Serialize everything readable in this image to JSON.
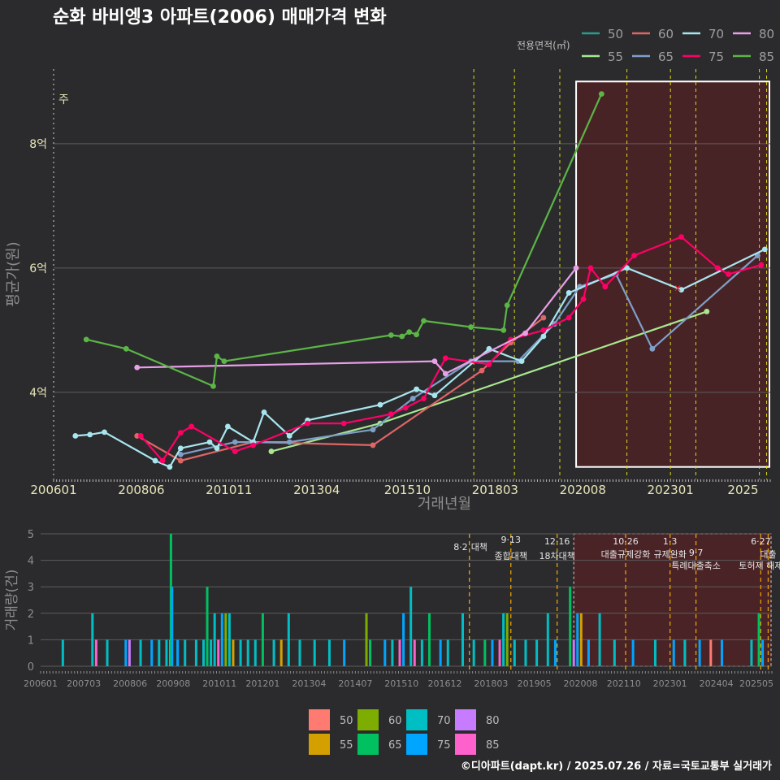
{
  "chart_data": [
    {
      "type": "line",
      "title": "순화 바비엥3 아파트(2006) 매매가격 변화",
      "xlabel": "거래년월",
      "ylabel": "평균가(원)",
      "x_ticks": [
        "200601",
        "200806",
        "201011",
        "201304",
        "201510",
        "201803",
        "202008",
        "202301",
        "2025"
      ],
      "y_ticks": [
        {
          "value": 4,
          "label": "4억"
        },
        {
          "value": 6,
          "label": "6억"
        },
        {
          "value": 8,
          "label": "8억"
        }
      ],
      "ylim": [
        2.6,
        9.2
      ],
      "xlim": [
        2006.0,
        2025.75
      ],
      "note_label": "주",
      "legend_title": "전용면적(㎡)",
      "series": [
        {
          "name": "50",
          "color": "#2a9d8f",
          "points": []
        },
        {
          "name": "55",
          "color": "#a8e890",
          "points": [
            [
              2012.0,
              3.05
            ],
            [
              2015.0,
              3.5
            ],
            [
              2024.0,
              5.3
            ]
          ]
        },
        {
          "name": "60",
          "color": "#e06666",
          "points": [
            [
              2008.3,
              3.3
            ],
            [
              2009.5,
              2.9
            ],
            [
              2011.5,
              3.2
            ],
            [
              2014.8,
              3.15
            ],
            [
              2017.8,
              4.35
            ],
            [
              2018.6,
              4.8
            ],
            [
              2019.5,
              5.2
            ]
          ]
        },
        {
          "name": "65",
          "color": "#7f9fc8",
          "points": [
            [
              2009.5,
              3.0
            ],
            [
              2011.0,
              3.2
            ],
            [
              2012.5,
              3.2
            ],
            [
              2014.8,
              3.4
            ],
            [
              2015.9,
              3.9
            ],
            [
              2017.5,
              4.5
            ],
            [
              2018.8,
              4.5
            ],
            [
              2019.8,
              5.1
            ],
            [
              2020.5,
              5.7
            ],
            [
              2021.5,
              5.9
            ],
            [
              2022.5,
              4.7
            ],
            [
              2025.4,
              6.2
            ]
          ]
        },
        {
          "name": "70",
          "color": "#a8e6ef",
          "points": [
            [
              2006.6,
              3.3
            ],
            [
              2007.0,
              3.32
            ],
            [
              2007.4,
              3.36
            ],
            [
              2008.8,
              2.9
            ],
            [
              2009.2,
              2.8
            ],
            [
              2009.5,
              3.1
            ],
            [
              2010.3,
              3.2
            ],
            [
              2010.5,
              3.1
            ],
            [
              2010.8,
              3.45
            ],
            [
              2011.5,
              3.2
            ],
            [
              2011.8,
              3.68
            ],
            [
              2012.5,
              3.3
            ],
            [
              2013.0,
              3.55
            ],
            [
              2015.0,
              3.8
            ],
            [
              2016.0,
              4.05
            ],
            [
              2016.5,
              3.95
            ],
            [
              2018.0,
              4.7
            ],
            [
              2018.9,
              4.5
            ],
            [
              2019.5,
              4.9
            ],
            [
              2020.2,
              5.6
            ],
            [
              2021.8,
              6.0
            ],
            [
              2023.3,
              5.65
            ],
            [
              2025.6,
              6.3
            ]
          ]
        },
        {
          "name": "75",
          "color": "#ff0066",
          "points": [
            [
              2008.4,
              3.3
            ],
            [
              2009.0,
              2.9
            ],
            [
              2009.5,
              3.35
            ],
            [
              2009.8,
              3.45
            ],
            [
              2011.0,
              3.05
            ],
            [
              2011.5,
              3.15
            ],
            [
              2013.0,
              3.5
            ],
            [
              2014.0,
              3.5
            ],
            [
              2015.3,
              3.65
            ],
            [
              2015.7,
              3.75
            ],
            [
              2016.2,
              3.9
            ],
            [
              2016.8,
              4.55
            ],
            [
              2018.0,
              4.45
            ],
            [
              2018.6,
              4.85
            ],
            [
              2019.5,
              5.0
            ],
            [
              2020.2,
              5.2
            ],
            [
              2020.6,
              5.5
            ],
            [
              2020.8,
              6.0
            ],
            [
              2021.2,
              5.7
            ],
            [
              2022.0,
              6.2
            ],
            [
              2023.3,
              6.5
            ],
            [
              2024.3,
              6.0
            ],
            [
              2024.6,
              5.9
            ],
            [
              2025.5,
              6.05
            ]
          ]
        },
        {
          "name": "80",
          "color": "#e8a0e8",
          "points": [
            [
              2008.3,
              4.4
            ],
            [
              2016.5,
              4.5
            ],
            [
              2016.8,
              4.3
            ],
            [
              2019.0,
              4.95
            ],
            [
              2020.4,
              6.0
            ]
          ]
        },
        {
          "name": "85",
          "color": "#5bb646",
          "points": [
            [
              2006.9,
              4.85
            ],
            [
              2008.0,
              4.7
            ],
            [
              2010.4,
              4.1
            ],
            [
              2010.5,
              4.58
            ],
            [
              2010.7,
              4.5
            ],
            [
              2015.3,
              4.92
            ],
            [
              2015.6,
              4.9
            ],
            [
              2015.8,
              4.97
            ],
            [
              2016.0,
              4.93
            ],
            [
              2016.2,
              5.15
            ],
            [
              2017.5,
              5.05
            ],
            [
              2018.4,
              5.0
            ],
            [
              2018.5,
              5.4
            ],
            [
              2021.1,
              8.8
            ]
          ]
        }
      ],
      "markers_x": [
        {
          "x": 2023.2,
          "y": 5.68,
          "color": "#ff2222"
        }
      ],
      "highlight_region": {
        "x_start": 2020.4,
        "x_end": 2025.75,
        "y_start": 2.8,
        "y_end": 9.0
      },
      "policy_lines": [
        2017.58,
        2018.7,
        2019.95,
        2021.8,
        2023.0,
        2023.7,
        2025.45,
        2025.65
      ]
    },
    {
      "type": "bar",
      "title": "",
      "xlabel": "",
      "ylabel": "거래량(건)",
      "x_ticks": [
        "200601",
        "200703",
        "200806",
        "200908",
        "201011",
        "201201",
        "201304",
        "201407",
        "201510",
        "201612",
        "201803",
        "201905",
        "202008",
        "202110",
        "202301",
        "202404",
        "202505"
      ],
      "y_ticks": [
        0,
        1,
        2,
        3,
        4,
        5
      ],
      "ylim": [
        0,
        5
      ],
      "legend": [
        {
          "name": "50",
          "color": "#ff7b72"
        },
        {
          "name": "55",
          "color": "#d4a000"
        },
        {
          "name": "60",
          "color": "#7cad00"
        },
        {
          "name": "65",
          "color": "#00c060"
        },
        {
          "name": "70",
          "color": "#00bfc4"
        },
        {
          "name": "75",
          "color": "#00a5ff"
        },
        {
          "name": "80",
          "color": "#c77cff"
        },
        {
          "name": "85",
          "color": "#ff61cc"
        }
      ],
      "bars": [
        {
          "x": 2006.6,
          "cat": "70",
          "v": 1
        },
        {
          "x": 2007.4,
          "cat": "70",
          "v": 2
        },
        {
          "x": 2007.5,
          "cat": "85",
          "v": 1
        },
        {
          "x": 2007.8,
          "cat": "70",
          "v": 1
        },
        {
          "x": 2008.3,
          "cat": "75",
          "v": 1
        },
        {
          "x": 2008.4,
          "cat": "80",
          "v": 1
        },
        {
          "x": 2008.7,
          "cat": "70",
          "v": 1
        },
        {
          "x": 2009.0,
          "cat": "75",
          "v": 1
        },
        {
          "x": 2009.2,
          "cat": "70",
          "v": 1
        },
        {
          "x": 2009.4,
          "cat": "70",
          "v": 1
        },
        {
          "x": 2009.5,
          "cat": "60",
          "v": 1
        },
        {
          "x": 2009.52,
          "cat": "65",
          "v": 5
        },
        {
          "x": 2009.55,
          "cat": "75",
          "v": 3
        },
        {
          "x": 2009.7,
          "cat": "75",
          "v": 1
        },
        {
          "x": 2009.9,
          "cat": "70",
          "v": 1
        },
        {
          "x": 2010.2,
          "cat": "70",
          "v": 1
        },
        {
          "x": 2010.4,
          "cat": "70",
          "v": 1
        },
        {
          "x": 2010.5,
          "cat": "65",
          "v": 3
        },
        {
          "x": 2010.6,
          "cat": "70",
          "v": 1
        },
        {
          "x": 2010.7,
          "cat": "70",
          "v": 2
        },
        {
          "x": 2010.8,
          "cat": "85",
          "v": 1
        },
        {
          "x": 2010.9,
          "cat": "75",
          "v": 2
        },
        {
          "x": 2011.0,
          "cat": "60",
          "v": 2
        },
        {
          "x": 2011.1,
          "cat": "70",
          "v": 2
        },
        {
          "x": 2011.2,
          "cat": "55",
          "v": 1
        },
        {
          "x": 2011.4,
          "cat": "70",
          "v": 1
        },
        {
          "x": 2011.6,
          "cat": "70",
          "v": 1
        },
        {
          "x": 2011.8,
          "cat": "70",
          "v": 1
        },
        {
          "x": 2012.0,
          "cat": "65",
          "v": 2
        },
        {
          "x": 2012.3,
          "cat": "70",
          "v": 1
        },
        {
          "x": 2012.5,
          "cat": "55",
          "v": 1
        },
        {
          "x": 2012.7,
          "cat": "70",
          "v": 2
        },
        {
          "x": 2013.0,
          "cat": "70",
          "v": 1
        },
        {
          "x": 2013.4,
          "cat": "70",
          "v": 1
        },
        {
          "x": 2013.8,
          "cat": "70",
          "v": 1
        },
        {
          "x": 2014.2,
          "cat": "75",
          "v": 1
        },
        {
          "x": 2014.8,
          "cat": "60",
          "v": 2
        },
        {
          "x": 2014.9,
          "cat": "65",
          "v": 1
        },
        {
          "x": 2015.3,
          "cat": "75",
          "v": 1
        },
        {
          "x": 2015.5,
          "cat": "70",
          "v": 1
        },
        {
          "x": 2015.7,
          "cat": "85",
          "v": 1
        },
        {
          "x": 2015.8,
          "cat": "75",
          "v": 2
        },
        {
          "x": 2016.0,
          "cat": "70",
          "v": 3
        },
        {
          "x": 2016.1,
          "cat": "85",
          "v": 1
        },
        {
          "x": 2016.3,
          "cat": "70",
          "v": 1
        },
        {
          "x": 2016.5,
          "cat": "65",
          "v": 2
        },
        {
          "x": 2016.8,
          "cat": "75",
          "v": 1
        },
        {
          "x": 2017.0,
          "cat": "70",
          "v": 1
        },
        {
          "x": 2017.4,
          "cat": "70",
          "v": 2
        },
        {
          "x": 2017.7,
          "cat": "70",
          "v": 1
        },
        {
          "x": 2018.0,
          "cat": "65",
          "v": 1
        },
        {
          "x": 2018.2,
          "cat": "75",
          "v": 1
        },
        {
          "x": 2018.4,
          "cat": "85",
          "v": 1
        },
        {
          "x": 2018.5,
          "cat": "70",
          "v": 2
        },
        {
          "x": 2018.6,
          "cat": "60",
          "v": 2
        },
        {
          "x": 2018.8,
          "cat": "70",
          "v": 1
        },
        {
          "x": 2019.1,
          "cat": "70",
          "v": 1
        },
        {
          "x": 2019.4,
          "cat": "70",
          "v": 1
        },
        {
          "x": 2019.7,
          "cat": "70",
          "v": 2
        },
        {
          "x": 2019.9,
          "cat": "75",
          "v": 1
        },
        {
          "x": 2020.3,
          "cat": "65",
          "v": 3
        },
        {
          "x": 2020.4,
          "cat": "80",
          "v": 1
        },
        {
          "x": 2020.5,
          "cat": "75",
          "v": 2
        },
        {
          "x": 2020.6,
          "cat": "55",
          "v": 2
        },
        {
          "x": 2020.8,
          "cat": "75",
          "v": 1
        },
        {
          "x": 2021.1,
          "cat": "70",
          "v": 2
        },
        {
          "x": 2021.5,
          "cat": "70",
          "v": 1
        },
        {
          "x": 2022.0,
          "cat": "75",
          "v": 1
        },
        {
          "x": 2022.6,
          "cat": "70",
          "v": 1
        },
        {
          "x": 2023.1,
          "cat": "75",
          "v": 1
        },
        {
          "x": 2023.4,
          "cat": "70",
          "v": 1
        },
        {
          "x": 2023.8,
          "cat": "75",
          "v": 1
        },
        {
          "x": 2024.1,
          "cat": "50",
          "v": 1
        },
        {
          "x": 2024.4,
          "cat": "75",
          "v": 1
        },
        {
          "x": 2025.2,
          "cat": "70",
          "v": 1
        },
        {
          "x": 2025.4,
          "cat": "65",
          "v": 2
        },
        {
          "x": 2025.5,
          "cat": "75",
          "v": 1
        }
      ],
      "highlight_region": {
        "x_start": 2020.4,
        "x_end": 2025.75
      },
      "annotations": [
        {
          "x": 2017.58,
          "date": "8·2",
          "label": "대책"
        },
        {
          "x": 2018.7,
          "date": "9·13",
          "label": "종합대책"
        },
        {
          "x": 2019.95,
          "date": "12·16",
          "label": "18차대책"
        },
        {
          "x": 2021.8,
          "date": "10·26",
          "label": "대출규제강화"
        },
        {
          "x": 2023.0,
          "date": "1·3",
          "label": "규제완화"
        },
        {
          "x": 2023.7,
          "date": "9·7",
          "label": "특례대출축소"
        },
        {
          "x": 2025.45,
          "date": "6·27",
          "label": "토허제 해제"
        },
        {
          "x": 2025.65,
          "date": "",
          "label": "대출"
        }
      ]
    }
  ],
  "footer": "©디아파트(dapt.kr) / 2025.07.26 / 자료=국토교통부 실거래가"
}
